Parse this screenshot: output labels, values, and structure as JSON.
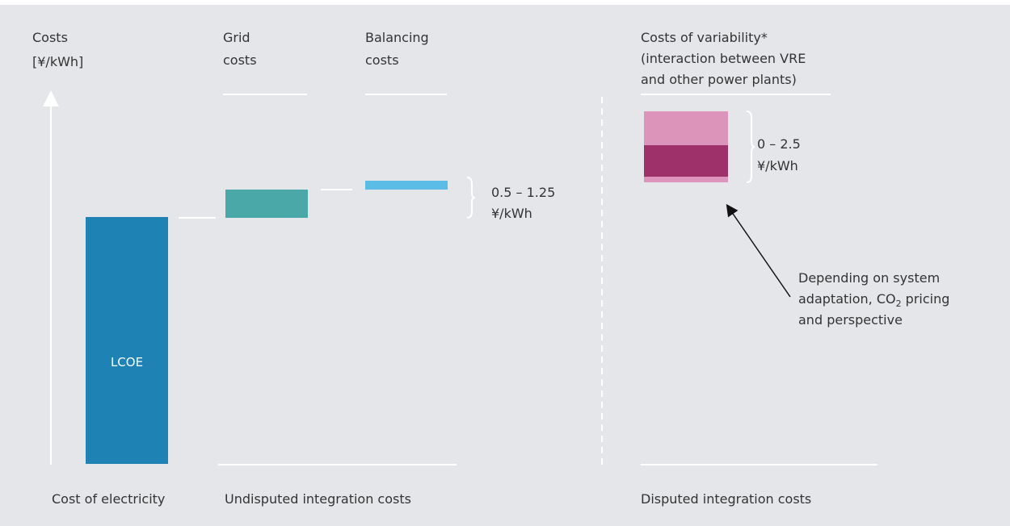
{
  "axis": {
    "title": [
      "Costs",
      "[¥/kWh]"
    ]
  },
  "columns": [
    {
      "title": [
        "Grid",
        "costs"
      ]
    },
    {
      "title": [
        "Balancing",
        "costs"
      ]
    },
    {
      "title": [
        "Costs of variability*",
        "(interaction between VRE",
        "and other power plants)"
      ]
    }
  ],
  "bar_label": "LCOE",
  "ranges": [
    {
      "lines": [
        "0.5 – 1.25",
        "¥/kWh"
      ]
    },
    {
      "lines": [
        "0 – 2.5",
        "¥/kWh"
      ]
    }
  ],
  "annotation": {
    "line1": "Depending on system",
    "line2": [
      "adaptation, CO",
      "2",
      " pricing"
    ],
    "line3": "and perspective"
  },
  "groups": [
    "Cost of electricity",
    "Undisputed integration costs",
    "Disputed integration costs"
  ]
}
